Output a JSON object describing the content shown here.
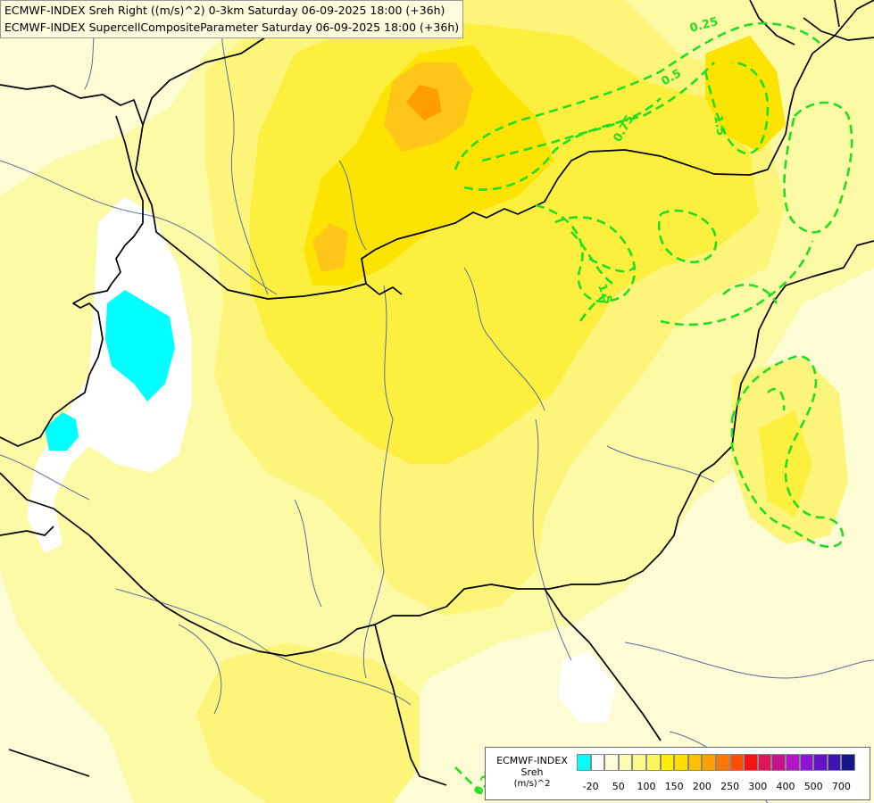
{
  "titles": {
    "line1": "ECMWF-INDEX Sreh Right ((m/s)^2) 0-3km Saturday 06-09-2025 18:00 (+36h)",
    "line2": "ECMWF-INDEX SupercellCompositeParameter Saturday 06-09-2025 18:00 (+36h)"
  },
  "contour_labels": [
    "0.25",
    "0.5",
    "0.75",
    "1.5",
    "1.5",
    "0.25"
  ],
  "legend": {
    "title": "ECMWF-INDEX",
    "variable": "Sreh",
    "unit": "(m/s)^2",
    "colors": [
      "#00ffff",
      "#ffffff",
      "#fdfddb",
      "#fdfcb4",
      "#fdfa8c",
      "#fef65a",
      "#ffee00",
      "#ffde00",
      "#ffc000",
      "#ffa000",
      "#ff7800",
      "#ff5000",
      "#f51414",
      "#e0145a",
      "#c8148c",
      "#b414c8",
      "#8c14dc",
      "#6414c8",
      "#3c14b4",
      "#14148c"
    ],
    "ticks": [
      "-20",
      "50",
      "100",
      "150",
      "200",
      "250",
      "300",
      "400",
      "500",
      "700"
    ]
  },
  "colors": {
    "border": "#000000",
    "river": "#5a6ea0",
    "contour": "#22dd22"
  }
}
